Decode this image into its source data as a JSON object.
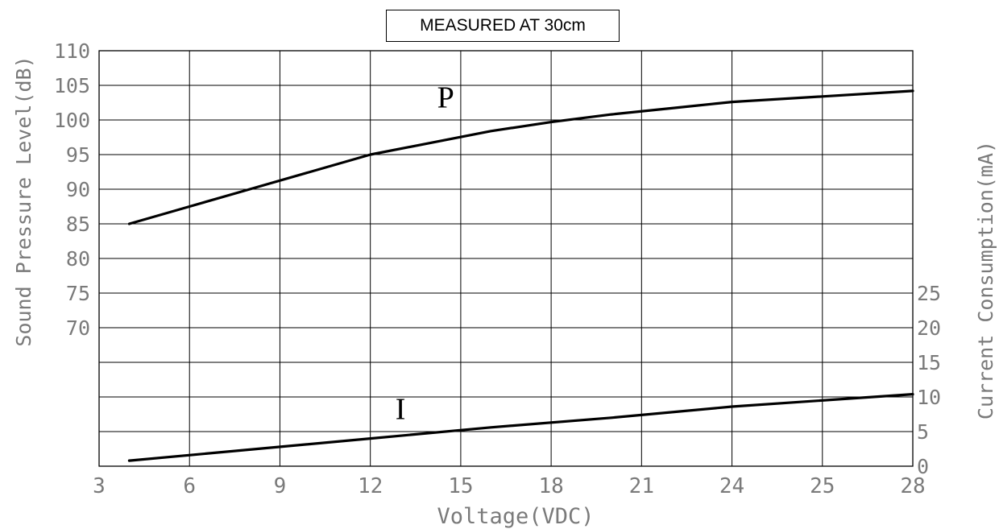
{
  "chart_data": {
    "type": "line",
    "title": "MEASURED AT 30cm",
    "xlabel": "Voltage(VDC)",
    "ylabel_left": "Sound Pressure Level(dB)",
    "ylabel_right": "Current Consumption(mA)",
    "x_tick_labels": [
      "3",
      "6",
      "9",
      "12",
      "15",
      "18",
      "21",
      "24",
      "25",
      "28"
    ],
    "y_left_tick_labels": [
      "110",
      "105",
      "100",
      "95",
      "90",
      "85",
      "80",
      "75",
      "70"
    ],
    "y_right_tick_labels": [
      "25",
      "20",
      "15",
      "10",
      "5",
      "0"
    ],
    "grid": true,
    "series": [
      {
        "name": "P",
        "axis": "left",
        "x": [
          4,
          6,
          8,
          10,
          12,
          14,
          16,
          18,
          20,
          22,
          24,
          26,
          28
        ],
        "values": [
          85,
          87.5,
          90,
          92.5,
          95,
          96.7,
          98.4,
          99.7,
          100.8,
          101.7,
          102.6,
          103.4,
          104.2
        ]
      },
      {
        "name": "I",
        "axis": "right",
        "x": [
          4,
          8,
          12,
          16,
          20,
          24,
          28
        ],
        "values": [
          0.8,
          2.4,
          4.0,
          5.6,
          7.0,
          8.6,
          10.4
        ]
      }
    ]
  }
}
